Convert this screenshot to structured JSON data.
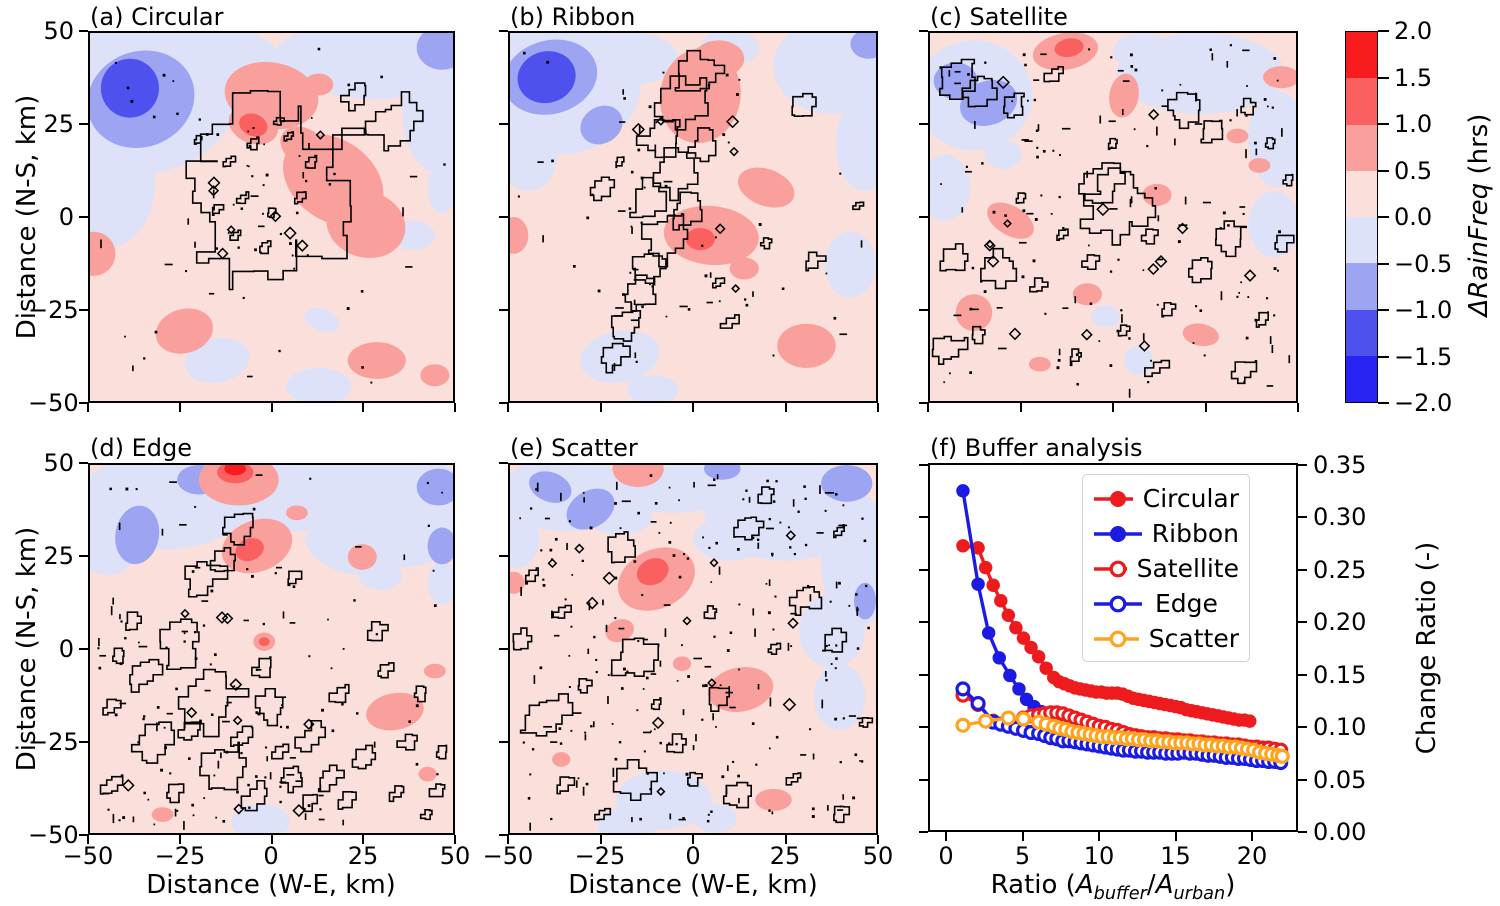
{
  "figure": {
    "panels": [
      {
        "id": "a",
        "title": "(a) Circular"
      },
      {
        "id": "b",
        "title": "(b) Ribbon"
      },
      {
        "id": "c",
        "title": "(c) Satellite"
      },
      {
        "id": "d",
        "title": "(d) Edge"
      },
      {
        "id": "e",
        "title": "(e) Scatter"
      },
      {
        "id": "f",
        "title": "(f) Buffer analysis"
      }
    ],
    "map_axes": {
      "x_label": "Distance (W-E, km)",
      "y_label": "Distance (N-S, km)",
      "x_ticks": [
        "−50",
        "−25",
        "0",
        "25",
        "50"
      ],
      "y_ticks": [
        "50",
        "25",
        "0",
        "−25",
        "−50"
      ]
    },
    "colorbar": {
      "label_italic": "ΔRainFreq",
      "label_unit": " (hrs)",
      "tick_labels": [
        "2.0",
        "1.5",
        "1.0",
        "0.5",
        "0.0",
        "−0.5",
        "−1.0",
        "−1.5",
        "−2.0"
      ],
      "bands_top_to_bottom": [
        "#f91c1e",
        "#f9605f",
        "#faa09c",
        "#fbdfda",
        "#dee2f8",
        "#9da4f2",
        "#4f51ee",
        "#2823f2"
      ]
    }
  },
  "chart_data": {
    "type": "line",
    "title": "(f) Buffer analysis",
    "ylabel": "Change Ratio (-)",
    "xlabel_parts": {
      "prefix": "Ratio (",
      "a1": "A",
      "sub1": "buffer",
      "slash": "/",
      "a2": "A",
      "sub2": "urban",
      "suffix": ")"
    },
    "xlim": [
      -1.18,
      23.0
    ],
    "ylim": [
      0.0,
      0.35
    ],
    "x_tick_values": [
      0,
      5,
      10,
      15,
      20
    ],
    "x_tick_labels": [
      "0",
      "5",
      "10",
      "15",
      "20"
    ],
    "y_tick_values": [
      0.35,
      0.3,
      0.25,
      0.2,
      0.15,
      0.1,
      0.05,
      0.0
    ],
    "y_tick_labels": [
      "0.35",
      "0.30",
      "0.25",
      "0.20",
      "0.15",
      "0.10",
      "0.05",
      "0.00"
    ],
    "grid": false,
    "legend_position": "upper right",
    "series": [
      {
        "name": "Circular",
        "color": "#ee1b1e",
        "marker": "filled",
        "x": [
          1,
          2,
          2.5,
          3,
          3.5,
          4,
          4.5,
          5,
          5.5,
          6,
          6.5,
          7,
          7.35,
          7.7,
          8.05,
          8.4,
          8.75,
          9.1,
          9.45,
          9.8,
          10.15,
          10.5,
          10.85,
          11.2,
          11.55,
          11.9,
          12.25,
          12.6,
          12.95,
          13.3,
          13.65,
          14,
          14.35,
          14.7,
          15.05,
          15.4,
          15.75,
          16.1,
          16.45,
          16.8,
          17.15,
          17.5,
          17.85,
          18.2,
          18.55,
          18.9,
          19.25,
          19.6,
          19.95
        ],
        "y": [
          0.274,
          0.272,
          0.253,
          0.236,
          0.221,
          0.207,
          0.195,
          0.185,
          0.176,
          0.167,
          0.156,
          0.147,
          0.143,
          0.141,
          0.139,
          0.137,
          0.136,
          0.135,
          0.134,
          0.133,
          0.133,
          0.132,
          0.132,
          0.132,
          0.131,
          0.129,
          0.127,
          0.126,
          0.125,
          0.124,
          0.123,
          0.122,
          0.121,
          0.12,
          0.119,
          0.118,
          0.116,
          0.115,
          0.114,
          0.113,
          0.112,
          0.111,
          0.11,
          0.109,
          0.108,
          0.107,
          0.106,
          0.106,
          0.105
        ]
      },
      {
        "name": "Ribbon",
        "color": "#1b1be3",
        "marker": "filled",
        "x": [
          1,
          2,
          2.7,
          3.4,
          4.1,
          4.7,
          5.2,
          5.7,
          6.2,
          6.7
        ],
        "y": [
          0.327,
          0.237,
          0.19,
          0.166,
          0.149,
          0.136,
          0.126,
          0.119,
          0.114,
          0.111
        ]
      },
      {
        "name": "Satellite",
        "color": "#ee1b1e",
        "marker": "open",
        "x": [
          1,
          2,
          3,
          4,
          5,
          5.5,
          6,
          6.4,
          6.8,
          7.2,
          7.6,
          8,
          8.4,
          8.8,
          9.2,
          9.6,
          10,
          10.4,
          10.8,
          11.2,
          11.6,
          12,
          12.4,
          12.8,
          13.2,
          13.6,
          14,
          14.4,
          14.8,
          15.2,
          15.6,
          16,
          16.4,
          16.8,
          17.2,
          17.6,
          18,
          18.4,
          18.8,
          19.2,
          19.6,
          20,
          20.4,
          20.8,
          21.2,
          21.6,
          22
        ],
        "y": [
          0.13,
          0.121,
          0.105,
          0.107,
          0.108,
          0.11,
          0.111,
          0.112,
          0.113,
          0.113,
          0.112,
          0.11,
          0.108,
          0.106,
          0.104,
          0.102,
          0.1,
          0.099,
          0.097,
          0.096,
          0.094,
          0.092,
          0.091,
          0.09,
          0.089,
          0.089,
          0.088,
          0.088,
          0.087,
          0.087,
          0.086,
          0.086,
          0.085,
          0.085,
          0.084,
          0.084,
          0.083,
          0.083,
          0.082,
          0.082,
          0.081,
          0.08,
          0.08,
          0.079,
          0.079,
          0.078,
          0.077
        ]
      },
      {
        "name": "Edge",
        "color": "#1b1be3",
        "marker": "open",
        "x": [
          1,
          2,
          3,
          3.5,
          4,
          4.5,
          5,
          5.5,
          6,
          6.4,
          6.8,
          7.2,
          7.6,
          8,
          8.4,
          8.8,
          9.2,
          9.6,
          10,
          10.4,
          10.8,
          11.2,
          11.6,
          12,
          12.4,
          12.8,
          13.2,
          13.6,
          14,
          14.4,
          14.8,
          15.2,
          15.6,
          16,
          16.4,
          16.8,
          17.2,
          17.6,
          18,
          18.4,
          18.8,
          19.2,
          19.6,
          20,
          20.4,
          20.8,
          21.2,
          21.6,
          22
        ],
        "y": [
          0.136,
          0.122,
          0.104,
          0.102,
          0.1,
          0.098,
          0.096,
          0.094,
          0.093,
          0.091,
          0.089,
          0.088,
          0.086,
          0.086,
          0.085,
          0.084,
          0.083,
          0.082,
          0.081,
          0.08,
          0.079,
          0.078,
          0.077,
          0.077,
          0.076,
          0.076,
          0.075,
          0.075,
          0.075,
          0.074,
          0.074,
          0.074,
          0.075,
          0.074,
          0.074,
          0.073,
          0.072,
          0.072,
          0.071,
          0.07,
          0.07,
          0.069,
          0.069,
          0.068,
          0.067,
          0.067,
          0.066,
          0.066,
          0.065
        ]
      },
      {
        "name": "Scatter",
        "color": "#ffa41c",
        "marker": "open",
        "x": [
          1,
          2.5,
          4,
          5,
          6,
          6.5,
          7,
          7.4,
          7.8,
          8.2,
          8.6,
          9,
          9.4,
          9.8,
          10.2,
          10.6,
          11,
          11.4,
          11.8,
          12.2,
          12.6,
          13,
          13.4,
          13.8,
          14.2,
          14.6,
          15,
          15.4,
          15.8,
          16.2,
          16.6,
          17,
          17.4,
          17.8,
          18.2,
          18.6,
          19,
          19.4,
          19.8,
          20.2,
          20.6,
          21,
          21.4,
          21.8,
          22.1
        ],
        "y": [
          0.101,
          0.105,
          0.108,
          0.107,
          0.104,
          0.102,
          0.1,
          0.098,
          0.097,
          0.095,
          0.094,
          0.093,
          0.092,
          0.091,
          0.09,
          0.09,
          0.089,
          0.089,
          0.088,
          0.088,
          0.087,
          0.087,
          0.086,
          0.086,
          0.085,
          0.085,
          0.084,
          0.084,
          0.084,
          0.083,
          0.083,
          0.082,
          0.082,
          0.081,
          0.081,
          0.08,
          0.08,
          0.079,
          0.078,
          0.077,
          0.075,
          0.074,
          0.073,
          0.072,
          0.071
        ]
      }
    ]
  }
}
